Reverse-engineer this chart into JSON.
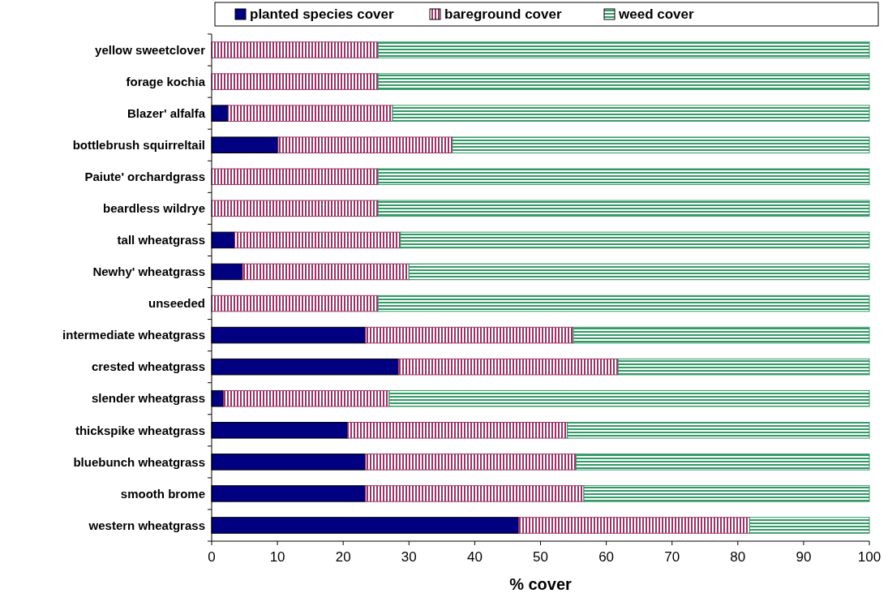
{
  "chart_data": {
    "type": "bar",
    "orientation": "horizontal",
    "stacked": true,
    "xlabel": "% cover",
    "categories": [
      "yellow sweetclover",
      "forage kochia",
      "Blazer' alfalfa",
      "bottlebrush squirreltail",
      "Paiute' orchardgrass",
      "beardless wildrye",
      "tall wheatgrass",
      "Newhy' wheatgrass",
      "unseeded",
      "intermediate wheatgrass",
      "crested wheatgrass",
      "slender wheatgrass",
      "thickspike wheatgrass",
      "bluebunch wheatgrass",
      "smooth brome",
      "western wheatgrass"
    ],
    "series": [
      {
        "name": "planted species cover",
        "color": "#000080",
        "values": [
          0,
          0,
          2.5,
          10.1,
          0,
          0,
          3.5,
          4.7,
          0,
          23.4,
          28.4,
          1.8,
          20.7,
          23.4,
          23.4,
          46.7
        ]
      },
      {
        "name": "bareground cover",
        "color": "#993366",
        "values": [
          25.3,
          25.3,
          25,
          26.5,
          25.3,
          25.3,
          25.2,
          25.3,
          25.3,
          31.6,
          33.4,
          25.2,
          33.4,
          32,
          33.2,
          35.1
        ]
      },
      {
        "name": "weed cover",
        "color": "#339966",
        "values": [
          74.7,
          74.7,
          72.5,
          63.4,
          74.7,
          74.7,
          71.3,
          70,
          74.7,
          45,
          38.2,
          73,
          45.9,
          44.6,
          43.4,
          18.2
        ]
      }
    ],
    "xlim": [
      0,
      100
    ],
    "xticks": [
      0,
      10,
      20,
      30,
      40,
      50,
      60,
      70,
      80,
      90,
      100
    ],
    "grid": false,
    "legend": "top"
  }
}
